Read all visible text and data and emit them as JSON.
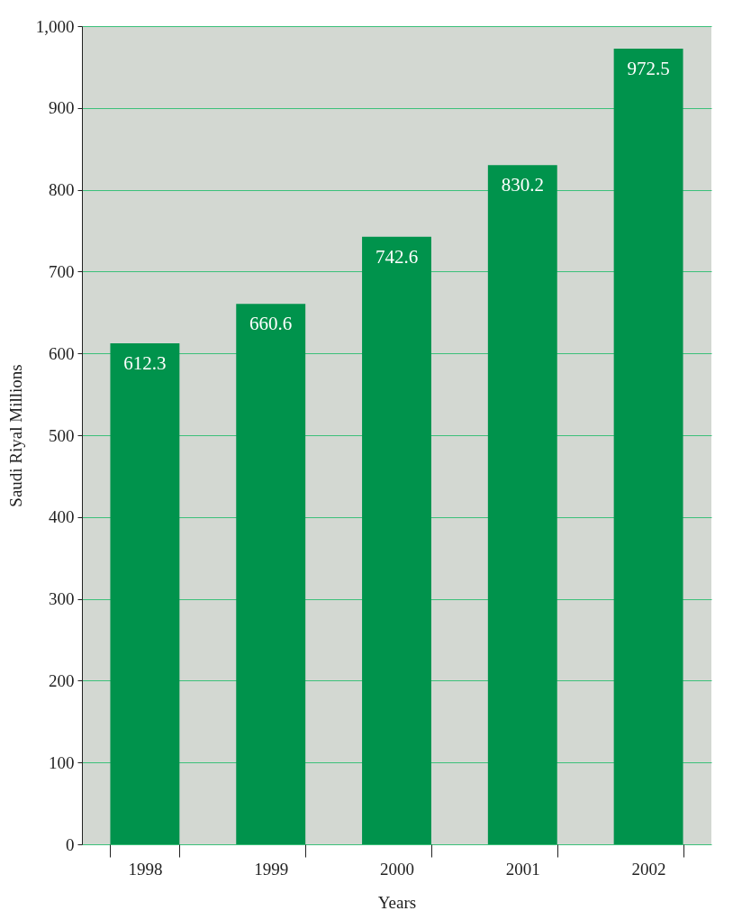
{
  "chart_data": {
    "type": "bar",
    "xlabel": "Years",
    "ylabel": "Saudi Riyal Millions",
    "categories": [
      "1998",
      "1999",
      "2000",
      "2001",
      "2002"
    ],
    "values": [
      612.3,
      660.6,
      742.6,
      830.2,
      972.5
    ],
    "color": "#00934c",
    "ylim": [
      0,
      1000
    ],
    "yticks": [
      0,
      100,
      200,
      300,
      400,
      500,
      600,
      700,
      800,
      900,
      {
        "value": 1000,
        "label": "1,000"
      }
    ],
    "grid": "y",
    "data_labels": true
  }
}
